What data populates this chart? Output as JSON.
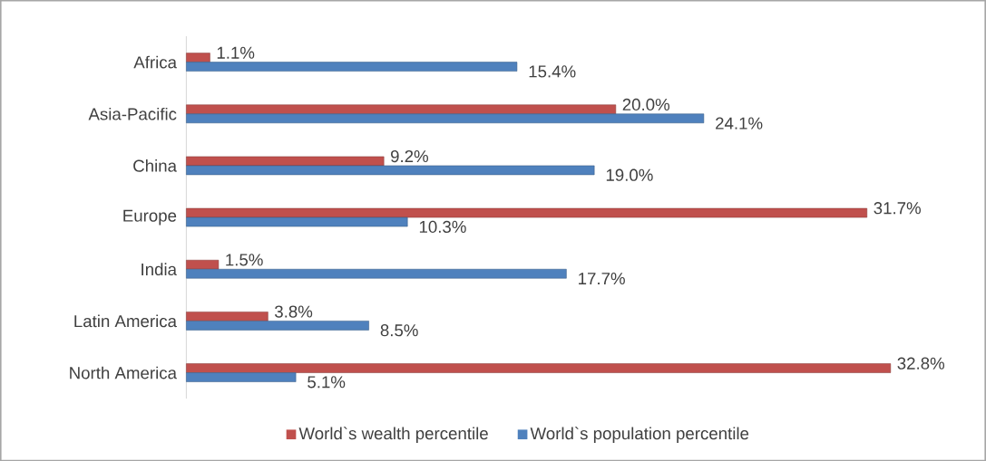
{
  "chart_data": {
    "type": "bar",
    "orientation": "horizontal",
    "categories": [
      "Africa",
      "Asia-Pacific",
      "China",
      "Europe",
      "India",
      "Latin America",
      "North America"
    ],
    "series": [
      {
        "name": "World`s wealth percentile",
        "color": "#c0504d",
        "values": [
          1.1,
          20.0,
          9.2,
          31.7,
          1.5,
          3.8,
          32.8
        ],
        "value_labels": [
          "1.1%",
          "20.0%",
          "9.2%",
          "31.7%",
          "1.5%",
          "3.8%",
          "32.8%"
        ]
      },
      {
        "name": "World`s population percentile",
        "color": "#4f81bd",
        "values": [
          15.4,
          24.1,
          19.0,
          10.3,
          17.7,
          8.5,
          5.1
        ],
        "value_labels": [
          "15.4%",
          "24.1%",
          "19.0%",
          "10.3%",
          "17.7%",
          "8.5%",
          "5.1%"
        ]
      }
    ],
    "legend": "bottom"
  }
}
